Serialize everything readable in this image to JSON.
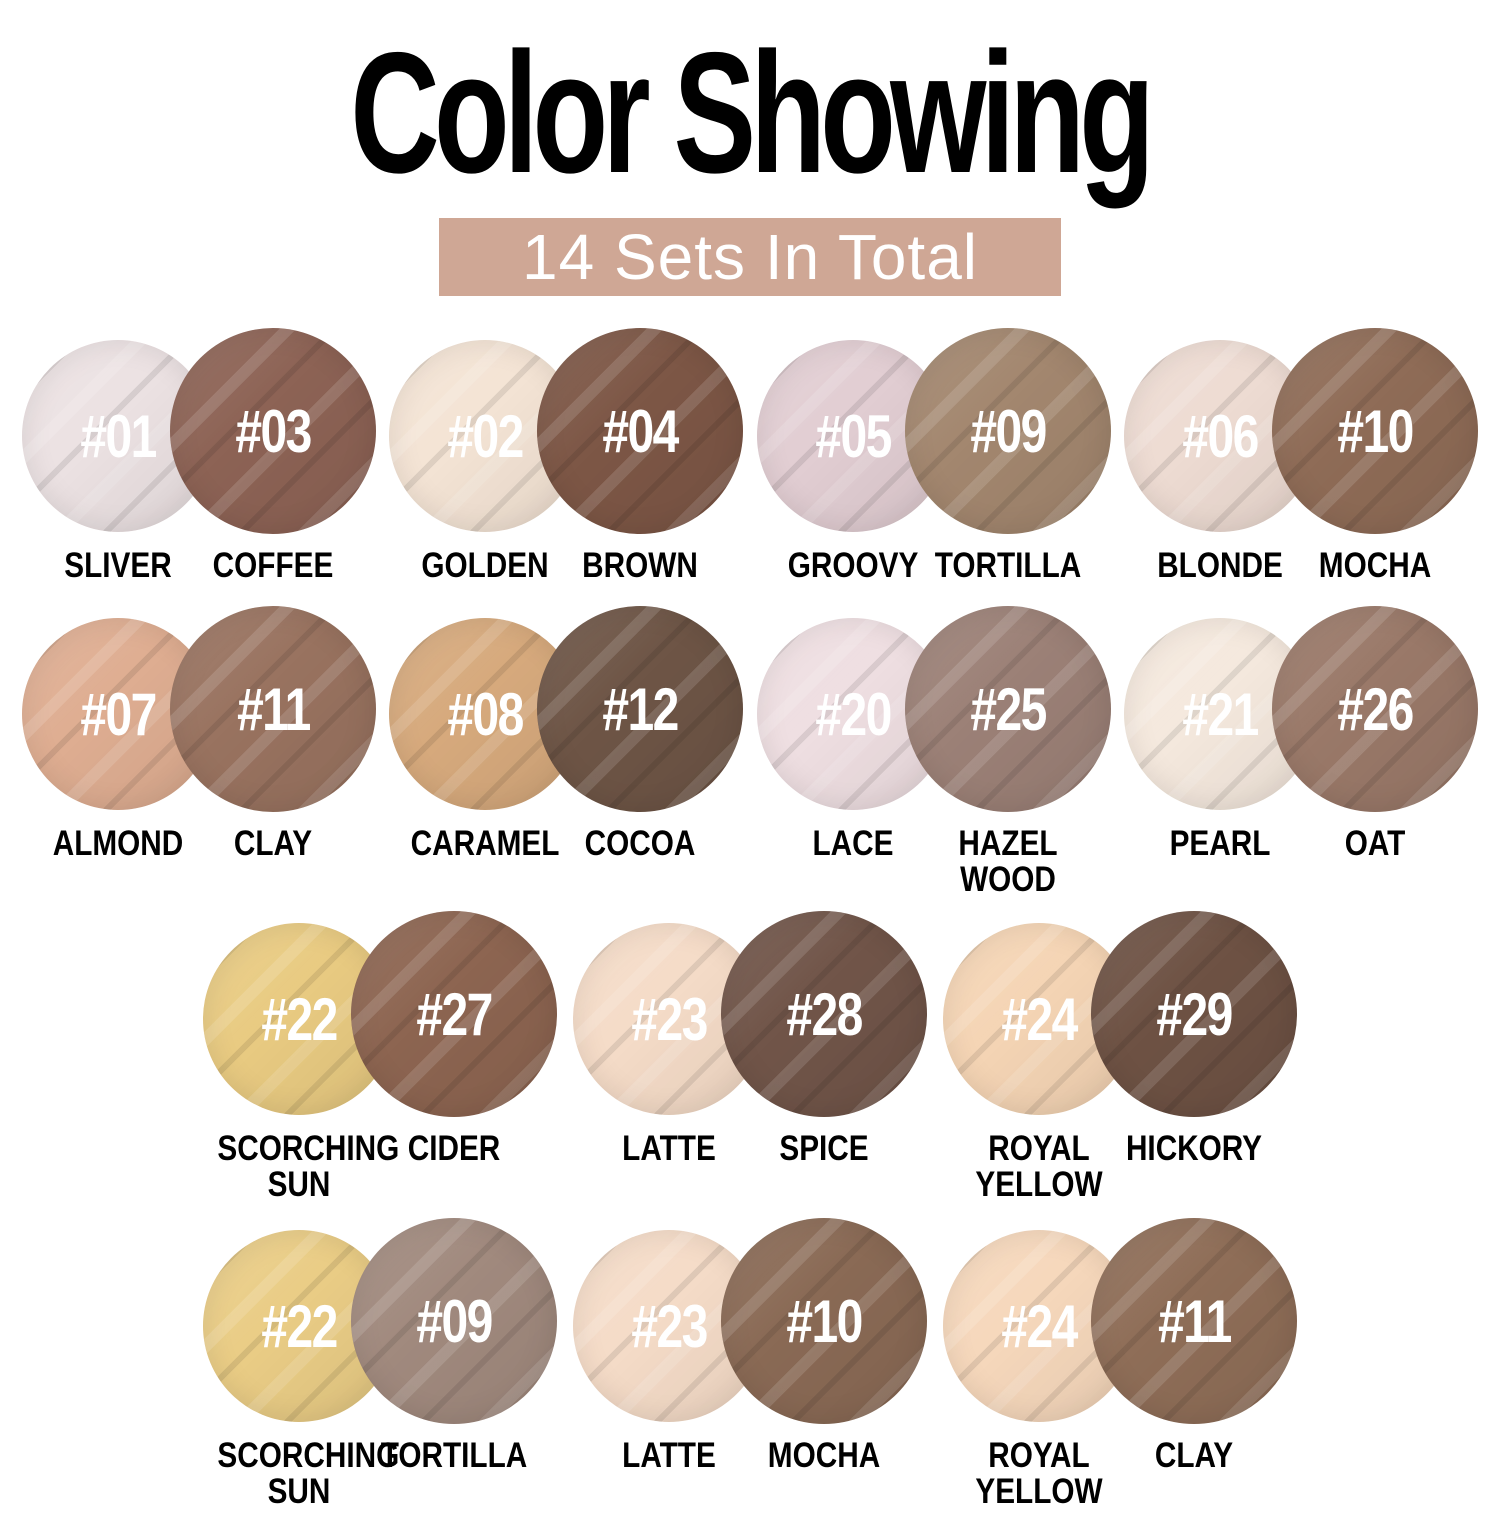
{
  "title": "Color Showing",
  "subtitle": "14 Sets In Total",
  "colors": {
    "subtitle_bg": "#cfa795",
    "subtitle_text": "#ffffff",
    "title_color": "#000000",
    "number_color": "#ffffff",
    "label_color": "#000000"
  },
  "rows": [
    {
      "pairs": [
        {
          "left": {
            "number": "#01",
            "name": "SLIVER",
            "color": "#ece2e3"
          },
          "right": {
            "number": "#03",
            "name": "COFFEE",
            "color": "#8d6355"
          }
        },
        {
          "left": {
            "number": "#02",
            "name": "GOLDEN",
            "color": "#f4e4d5"
          },
          "right": {
            "number": "#04",
            "name": "BROWN",
            "color": "#7d5746"
          }
        },
        {
          "left": {
            "number": "#05",
            "name": "GROOVY",
            "color": "#e2ced3"
          },
          "right": {
            "number": "#09",
            "name": "TORTILLA",
            "color": "#a3876f"
          }
        },
        {
          "left": {
            "number": "#06",
            "name": "BLONDE",
            "color": "#eedcd3"
          },
          "right": {
            "number": "#10",
            "name": "MOCHA",
            "color": "#8f6c57"
          }
        }
      ]
    },
    {
      "pairs": [
        {
          "left": {
            "number": "#07",
            "name": "ALMOND",
            "color": "#dfae92"
          },
          "right": {
            "number": "#11",
            "name": "CLAY",
            "color": "#997360"
          }
        },
        {
          "left": {
            "number": "#08",
            "name": "CARAMEL",
            "color": "#d7aa7d"
          },
          "right": {
            "number": "#12",
            "name": "COCOA",
            "color": "#6e5546"
          }
        },
        {
          "left": {
            "number": "#20",
            "name": "LACE",
            "color": "#efdfe2"
          },
          "right": {
            "number": "#25",
            "name": "HAZEL WOOD",
            "color": "#9c8177"
          }
        },
        {
          "left": {
            "number": "#21",
            "name": "PEARL",
            "color": "#f5e9de"
          },
          "right": {
            "number": "#26",
            "name": "OAT",
            "color": "#9a7969"
          }
        }
      ]
    },
    {
      "pairs": [
        {
          "left": {
            "number": "#22",
            "name": "SCORCHING SUN",
            "color": "#e9cb82"
          },
          "right": {
            "number": "#27",
            "name": "CIDER",
            "color": "#8d6551"
          }
        },
        {
          "left": {
            "number": "#23",
            "name": "LATTE",
            "color": "#f5dcc8"
          },
          "right": {
            "number": "#28",
            "name": "SPICE",
            "color": "#715549"
          }
        },
        {
          "left": {
            "number": "#24",
            "name": "ROYAL YELLOW",
            "color": "#f5d5b5"
          },
          "right": {
            "number": "#29",
            "name": "HICKORY",
            "color": "#6e5244"
          }
        }
      ]
    },
    {
      "pairs": [
        {
          "left": {
            "number": "#22",
            "name": "SCORCHING SUN",
            "color": "#eacd86"
          },
          "right": {
            "number": "#09",
            "name": "TORTILLA",
            "color": "#a18a7e"
          }
        },
        {
          "left": {
            "number": "#23",
            "name": "LATTE",
            "color": "#f5dcc8"
          },
          "right": {
            "number": "#10",
            "name": "MOCHA",
            "color": "#8a6a55"
          }
        },
        {
          "left": {
            "number": "#24",
            "name": "ROYAL YELLOW",
            "color": "#f6d8bc"
          },
          "right": {
            "number": "#11",
            "name": "CLAY",
            "color": "#8f6e58"
          }
        }
      ]
    }
  ]
}
